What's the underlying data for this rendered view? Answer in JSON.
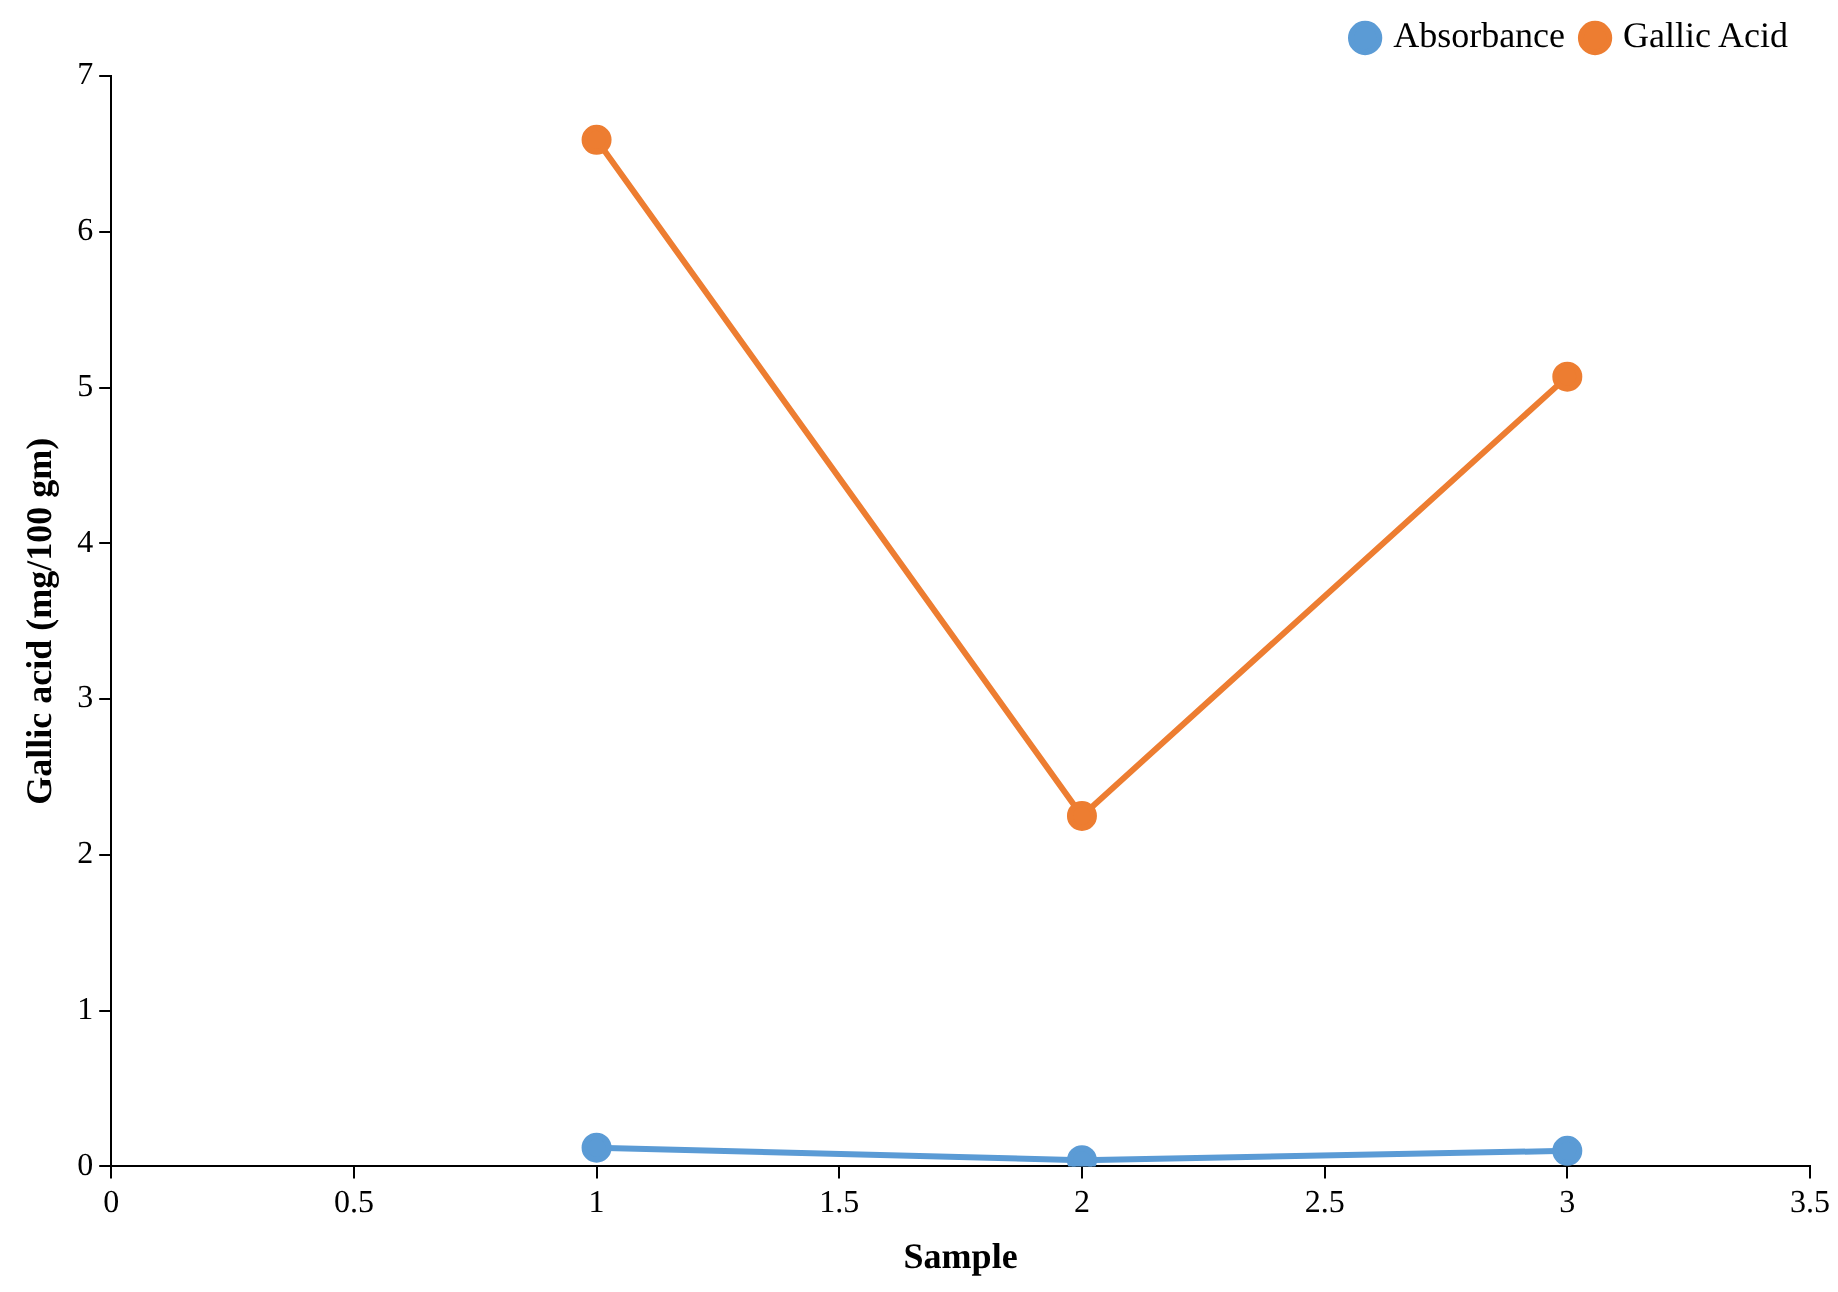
{
  "chart_data": {
    "type": "line",
    "xlabel": "Sample",
    "ylabel": "Gallic acid (mg/100 gm)",
    "x": [
      1,
      2,
      3
    ],
    "series": [
      {
        "name": "Absorbance",
        "color": "#5b9bd5",
        "values": [
          0.12,
          0.04,
          0.1
        ]
      },
      {
        "name": "Gallic Acid",
        "color": "#ed7d31",
        "values": [
          6.59,
          2.25,
          5.07
        ]
      }
    ],
    "xlim": [
      0,
      3.5
    ],
    "xticks": [
      0,
      {
        "value": 0.5,
        "label": "0.5"
      },
      1,
      {
        "value": 1.5,
        "label": "1.5"
      },
      2,
      {
        "value": 2.5,
        "label": "2.5"
      },
      3,
      {
        "value": 3.5,
        "label": "3.5"
      }
    ],
    "ylim": [
      0,
      7
    ],
    "yticks": [
      0,
      1,
      2,
      3,
      4,
      5,
      6,
      7
    ],
    "grid": false,
    "legend": "top right",
    "marker": "circle",
    "line_style": "solid"
  }
}
